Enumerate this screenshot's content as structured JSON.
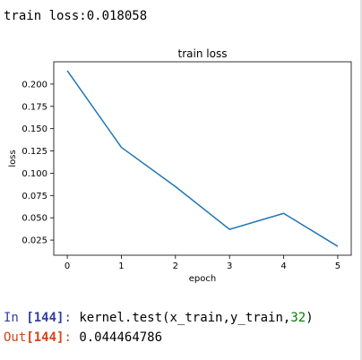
{
  "stdout": {
    "text": "train loss:0.018058"
  },
  "chart_data": {
    "type": "line",
    "title": "train loss",
    "xlabel": "epoch",
    "ylabel": "loss",
    "x": [
      0,
      1,
      2,
      3,
      4,
      5
    ],
    "series": [
      {
        "name": "",
        "values": [
          0.215,
          0.129,
          0.085,
          0.037,
          0.055,
          0.018
        ],
        "color": "#1f77b4"
      }
    ],
    "xlim": [
      -0.25,
      5.25
    ],
    "ylim": [
      0.008,
      0.225
    ],
    "xticks": [
      "0",
      "1",
      "2",
      "3",
      "4",
      "5"
    ],
    "yticks": [
      "0.025",
      "0.050",
      "0.075",
      "0.100",
      "0.125",
      "0.150",
      "0.175",
      "0.200"
    ],
    "grid": false
  },
  "cell": {
    "in_label": "In",
    "in_number": "[144]",
    "in_colon": ":",
    "code_prefix": "kernel.test(x_train,y_train,",
    "code_arg": "32",
    "code_suffix": ")",
    "out_label": "Out",
    "out_number": "[144]",
    "out_colon": ":",
    "out_value": "0.044464786"
  }
}
